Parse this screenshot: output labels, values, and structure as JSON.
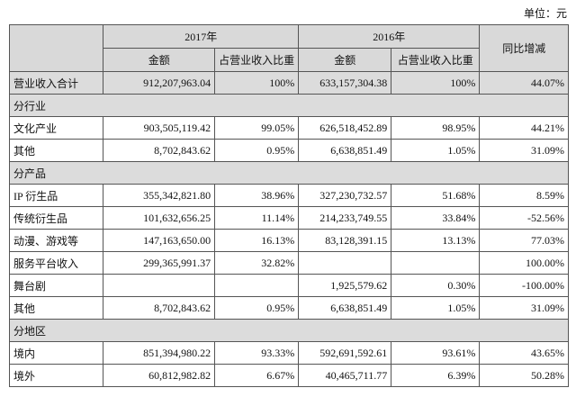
{
  "header": {
    "unit": "单位：元"
  },
  "table": {
    "years": [
      "2017年",
      "2016年"
    ],
    "change": "同比增减",
    "sub": [
      "金额",
      "占营业收入比重",
      "金额",
      "占营业收入比重"
    ],
    "rows": [
      [
        "营业收入合计",
        "912,207,963.04",
        "100%",
        "633,157,304.38",
        "100%",
        "44.07%"
      ],
      [
        "分行业"
      ],
      [
        "文化产业",
        "903,505,119.42",
        "99.05%",
        "626,518,452.89",
        "98.95%",
        "44.21%"
      ],
      [
        "其他",
        "8,702,843.62",
        "0.95%",
        "6,638,851.49",
        "1.05%",
        "31.09%"
      ],
      [
        "分产品"
      ],
      [
        "IP 衍生品",
        "355,342,821.80",
        "38.96%",
        "327,230,732.57",
        "51.68%",
        "8.59%"
      ],
      [
        "传统衍生品",
        "101,632,656.25",
        "11.14%",
        "214,233,749.55",
        "33.84%",
        "-52.56%"
      ],
      [
        "动漫、游戏等",
        "147,163,650.00",
        "16.13%",
        "83,128,391.15",
        "13.13%",
        "77.03%"
      ],
      [
        "服务平台收入",
        "299,365,991.37",
        "32.82%",
        null,
        null,
        "100.00%"
      ],
      [
        "舞台剧",
        null,
        null,
        "1,925,579.62",
        "0.30%",
        "-100.00%"
      ],
      [
        "其他",
        "8,702,843.62",
        "0.95%",
        "6,638,851.49",
        "1.05%",
        "31.09%"
      ],
      [
        "分地区"
      ],
      [
        "境内",
        "851,394,980.22",
        "93.33%",
        "592,691,592.61",
        "93.61%",
        "43.65%"
      ],
      [
        "境外",
        "60,812,982.82",
        "6.67%",
        "40,465,711.77",
        "6.39%",
        "50.28%"
      ]
    ]
  }
}
